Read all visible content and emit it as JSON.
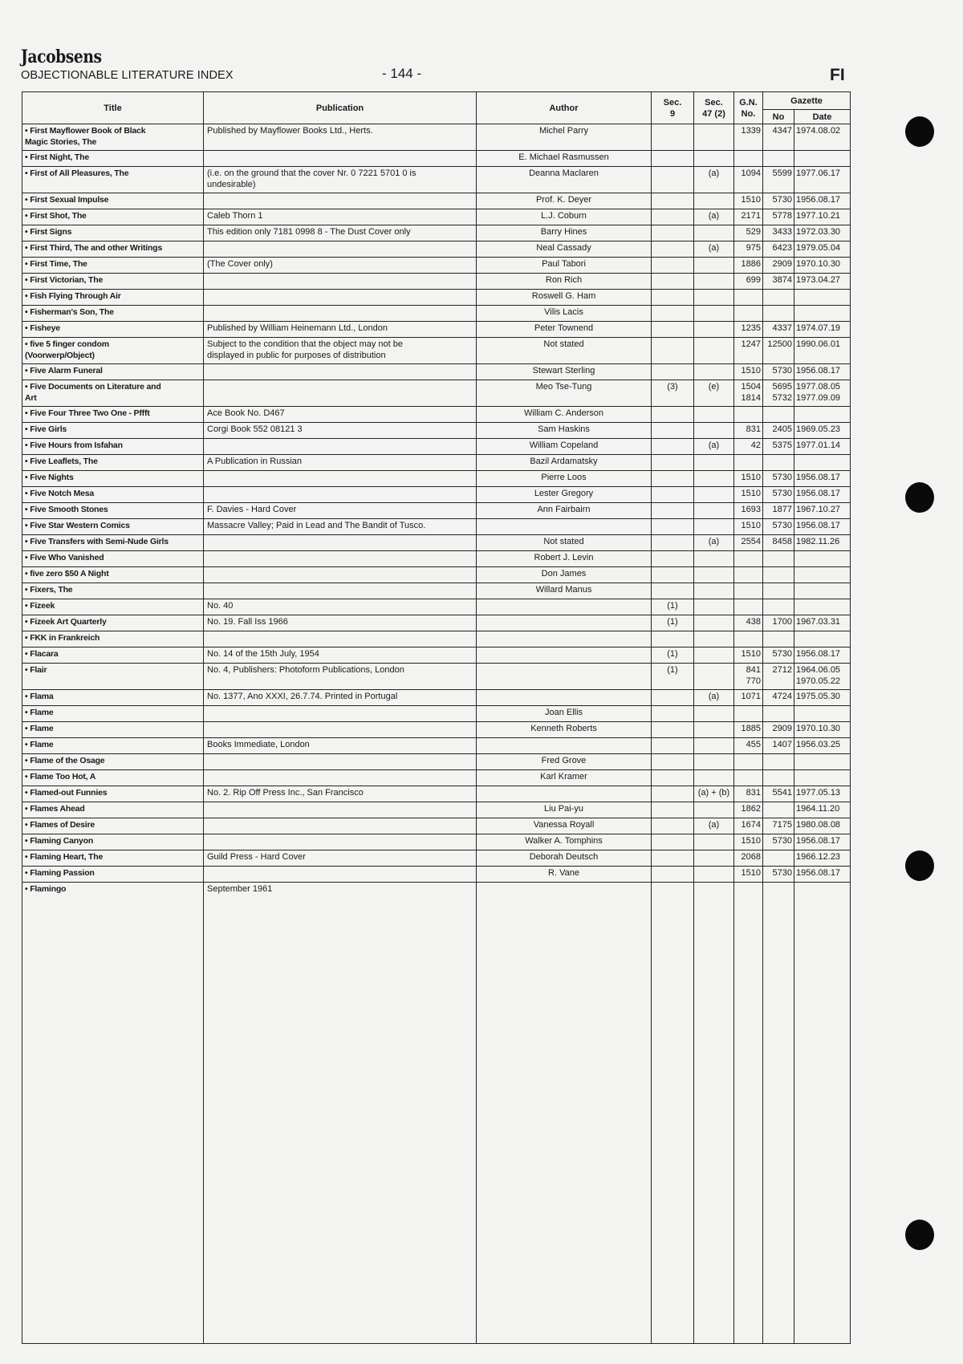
{
  "header": {
    "logo": "Jacobsens",
    "subtitle": "OBJECTIONABLE LITERATURE INDEX",
    "page_number": "- 144 -",
    "section": "FI"
  },
  "table": {
    "columns": {
      "title": "Title",
      "publication": "Publication",
      "author": "Author",
      "sec9": "Sec.\n9",
      "sec47": "Sec.\n47 (2)",
      "gn": "G.N.\nNo.",
      "gazette": "Gazette",
      "gazette_no": "No",
      "gazette_date": "Date"
    },
    "rows": [
      {
        "title": "• First Mayflower Book of Black\nMagic Stories, The",
        "publication": "Published by Mayflower Books Ltd., Herts.",
        "author": "Michel Parry",
        "sec9": "",
        "sec47": "",
        "gn": "1339",
        "no": "4347",
        "date": "1974.08.02"
      },
      {
        "title": "• First Night, The",
        "publication": "",
        "author": "E. Michael Rasmussen",
        "sec9": "",
        "sec47": "",
        "gn": "",
        "no": "",
        "date": ""
      },
      {
        "title": "• First of All Pleasures, The",
        "publication": "(i.e. on the ground that the cover Nr. 0 7221 5701 0 is\nundesirable)",
        "author": "Deanna Maclaren",
        "sec9": "",
        "sec47": "(a)",
        "gn": "1094",
        "no": "5599",
        "date": "1977.06.17"
      },
      {
        "title": "• First Sexual Impulse",
        "publication": "",
        "author": "Prof. K. Deyer",
        "sec9": "",
        "sec47": "",
        "gn": "1510",
        "no": "5730",
        "date": "1956.08.17"
      },
      {
        "title": "• First Shot, The",
        "publication": "Caleb Thorn 1",
        "author": "L.J. Coburn",
        "sec9": "",
        "sec47": "(a)",
        "gn": "2171",
        "no": "5778",
        "date": "1977.10.21"
      },
      {
        "title": "• First Signs",
        "publication": "This edition only 7181 0998 8 - The Dust Cover only",
        "author": "Barry Hines",
        "sec9": "",
        "sec47": "",
        "gn": "529",
        "no": "3433",
        "date": "1972.03.30"
      },
      {
        "title": "• First Third, The and other Writings",
        "publication": "",
        "author": "Neal Cassady",
        "sec9": "",
        "sec47": "(a)",
        "gn": "975",
        "no": "6423",
        "date": "1979.05.04"
      },
      {
        "title": "• First Time, The",
        "publication": "(The Cover only)",
        "author": "Paul Tabori",
        "sec9": "",
        "sec47": "",
        "gn": "1886",
        "no": "2909",
        "date": "1970.10.30"
      },
      {
        "title": "• First Victorian, The",
        "publication": "",
        "author": "Ron Rich",
        "sec9": "",
        "sec47": "",
        "gn": "699",
        "no": "3874",
        "date": "1973.04.27"
      },
      {
        "title": "• Fish Flying Through Air",
        "publication": "",
        "author": "Roswell G. Ham",
        "sec9": "",
        "sec47": "",
        "gn": "",
        "no": "",
        "date": ""
      },
      {
        "title": "• Fisherman's Son, The",
        "publication": "",
        "author": "Vilis Lacis",
        "sec9": "",
        "sec47": "",
        "gn": "",
        "no": "",
        "date": ""
      },
      {
        "title": "• Fisheye",
        "publication": "Published by William Heinemann Ltd., London",
        "author": "Peter Townend",
        "sec9": "",
        "sec47": "",
        "gn": "1235",
        "no": "4337",
        "date": "1974.07.19"
      },
      {
        "title": "• five 5 finger condom\n(Voorwerp/Object)",
        "publication": "Subject to the condition that the object may not be\ndisplayed in public for purposes of distribution",
        "author": "Not stated",
        "sec9": "",
        "sec47": "",
        "gn": "1247",
        "no": "12500",
        "date": "1990.06.01"
      },
      {
        "title": "• Five Alarm Funeral",
        "publication": "",
        "author": "Stewart Sterling",
        "sec9": "",
        "sec47": "",
        "gn": "1510",
        "no": "5730",
        "date": "1956.08.17"
      },
      {
        "title": "• Five Documents on Literature and\nArt",
        "publication": "",
        "author": "Meo Tse-Tung",
        "sec9": "(3)",
        "sec47": "(e)",
        "gn": "1504\n1814",
        "no": "5695\n5732",
        "date": "1977.08.05\n1977.09.09"
      },
      {
        "title": "• Five Four Three Two One - Pffft",
        "publication": "Ace Book No. D467",
        "author": "William C. Anderson",
        "sec9": "",
        "sec47": "",
        "gn": "",
        "no": "",
        "date": ""
      },
      {
        "title": "• Five Girls",
        "publication": "Corgi Book 552 08121 3",
        "author": "Sam Haskins",
        "sec9": "",
        "sec47": "",
        "gn": "831",
        "no": "2405",
        "date": "1969.05.23"
      },
      {
        "title": "• Five Hours from Isfahan",
        "publication": "",
        "author": "William Copeland",
        "sec9": "",
        "sec47": "(a)",
        "gn": "42",
        "no": "5375",
        "date": "1977.01.14"
      },
      {
        "title": "• Five Leaflets, The",
        "publication": "A Publication in Russian",
        "author": "Bazil Ardamatsky",
        "sec9": "",
        "sec47": "",
        "gn": "",
        "no": "",
        "date": ""
      },
      {
        "title": "• Five Nights",
        "publication": "",
        "author": "Pierre Loos",
        "sec9": "",
        "sec47": "",
        "gn": "1510",
        "no": "5730",
        "date": "1956.08.17"
      },
      {
        "title": "• Five Notch Mesa",
        "publication": "",
        "author": "Lester Gregory",
        "sec9": "",
        "sec47": "",
        "gn": "1510",
        "no": "5730",
        "date": "1956.08.17"
      },
      {
        "title": "• Five Smooth Stones",
        "publication": "F. Davies - Hard Cover",
        "author": "Ann Fairbairn",
        "sec9": "",
        "sec47": "",
        "gn": "1693",
        "no": "1877",
        "date": "1967.10.27"
      },
      {
        "title": "• Five Star Western Comics",
        "publication": "Massacre Valley; Paid in Lead and The Bandit of Tusco.",
        "author": "",
        "sec9": "",
        "sec47": "",
        "gn": "1510",
        "no": "5730",
        "date": "1956.08.17"
      },
      {
        "title": "• Five Transfers with Semi-Nude Girls",
        "publication": "",
        "author": "Not stated",
        "sec9": "",
        "sec47": "(a)",
        "gn": "2554",
        "no": "8458",
        "date": "1982.11.26"
      },
      {
        "title": "• Five Who Vanished",
        "publication": "",
        "author": "Robert J. Levin",
        "sec9": "",
        "sec47": "",
        "gn": "",
        "no": "",
        "date": ""
      },
      {
        "title": "• five zero $50 A Night",
        "publication": "",
        "author": "Don James",
        "sec9": "",
        "sec47": "",
        "gn": "",
        "no": "",
        "date": ""
      },
      {
        "title": "• Fixers, The",
        "publication": "",
        "author": "Willard Manus",
        "sec9": "",
        "sec47": "",
        "gn": "",
        "no": "",
        "date": ""
      },
      {
        "title": "• Fizeek",
        "publication": "No. 40",
        "author": "",
        "sec9": "(1)",
        "sec47": "",
        "gn": "",
        "no": "",
        "date": ""
      },
      {
        "title": "• Fizeek Art Quarterly",
        "publication": "No. 19. Fall Iss 1966",
        "author": "",
        "sec9": "(1)",
        "sec47": "",
        "gn": "438",
        "no": "1700",
        "date": "1967.03.31"
      },
      {
        "title": "• FKK in Frankreich",
        "publication": "",
        "author": "",
        "sec9": "",
        "sec47": "",
        "gn": "",
        "no": "",
        "date": ""
      },
      {
        "title": "• Flacara",
        "publication": "No. 14 of the 15th July, 1954",
        "author": "",
        "sec9": "(1)",
        "sec47": "",
        "gn": "1510",
        "no": "5730",
        "date": "1956.08.17"
      },
      {
        "title": "• Flair",
        "publication": "No. 4, Publishers: Photoform Publications, London",
        "author": "",
        "sec9": "(1)",
        "sec47": "",
        "gn": "841\n770",
        "no": "2712",
        "date": "1964.06.05\n1970.05.22"
      },
      {
        "title": "• Flama",
        "publication": "No. 1377, Ano XXXI, 26.7.74.  Printed in Portugal",
        "author": "",
        "sec9": "",
        "sec47": "(a)",
        "gn": "1071",
        "no": "4724",
        "date": "1975.05.30"
      },
      {
        "title": "• Flame",
        "publication": "",
        "author": "Joan Ellis",
        "sec9": "",
        "sec47": "",
        "gn": "",
        "no": "",
        "date": ""
      },
      {
        "title": "• Flame",
        "publication": "",
        "author": "Kenneth Roberts",
        "sec9": "",
        "sec47": "",
        "gn": "1885",
        "no": "2909",
        "date": "1970.10.30"
      },
      {
        "title": "• Flame",
        "publication": "Books Immediate, London",
        "author": "",
        "sec9": "",
        "sec47": "",
        "gn": "455",
        "no": "1407",
        "date": "1956.03.25"
      },
      {
        "title": "• Flame of the Osage",
        "publication": "",
        "author": "Fred Grove",
        "sec9": "",
        "sec47": "",
        "gn": "",
        "no": "",
        "date": ""
      },
      {
        "title": "• Flame Too Hot, A",
        "publication": "",
        "author": "Karl Kramer",
        "sec9": "",
        "sec47": "",
        "gn": "",
        "no": "",
        "date": ""
      },
      {
        "title": "• Flamed-out Funnies",
        "publication": "No. 2. Rip Off Press Inc., San Francisco",
        "author": "",
        "sec9": "",
        "sec47": "(a) + (b)",
        "gn": "831",
        "no": "5541",
        "date": "1977.05.13"
      },
      {
        "title": "• Flames Ahead",
        "publication": "",
        "author": "Liu Pai-yu",
        "sec9": "",
        "sec47": "",
        "gn": "1862",
        "no": "",
        "date": "1964.11.20"
      },
      {
        "title": "• Flames of Desire",
        "publication": "",
        "author": "Vanessa Royall",
        "sec9": "",
        "sec47": "(a)",
        "gn": "1674",
        "no": "7175",
        "date": "1980.08.08"
      },
      {
        "title": "• Flaming Canyon",
        "publication": "",
        "author": "Walker A. Tomphins",
        "sec9": "",
        "sec47": "",
        "gn": "1510",
        "no": "5730",
        "date": "1956.08.17"
      },
      {
        "title": "• Flaming Heart, The",
        "publication": "Guild Press  -  Hard Cover",
        "author": "Deborah Deutsch",
        "sec9": "",
        "sec47": "",
        "gn": "2068",
        "no": "",
        "date": "1966.12.23"
      },
      {
        "title": "• Flaming Passion",
        "publication": "",
        "author": "R. Vane",
        "sec9": "",
        "sec47": "",
        "gn": "1510",
        "no": "5730",
        "date": "1956.08.17"
      },
      {
        "title": "• Flamingo",
        "publication": "September 1961",
        "author": "",
        "sec9": "",
        "sec47": "",
        "gn": "",
        "no": "",
        "date": ""
      }
    ]
  }
}
